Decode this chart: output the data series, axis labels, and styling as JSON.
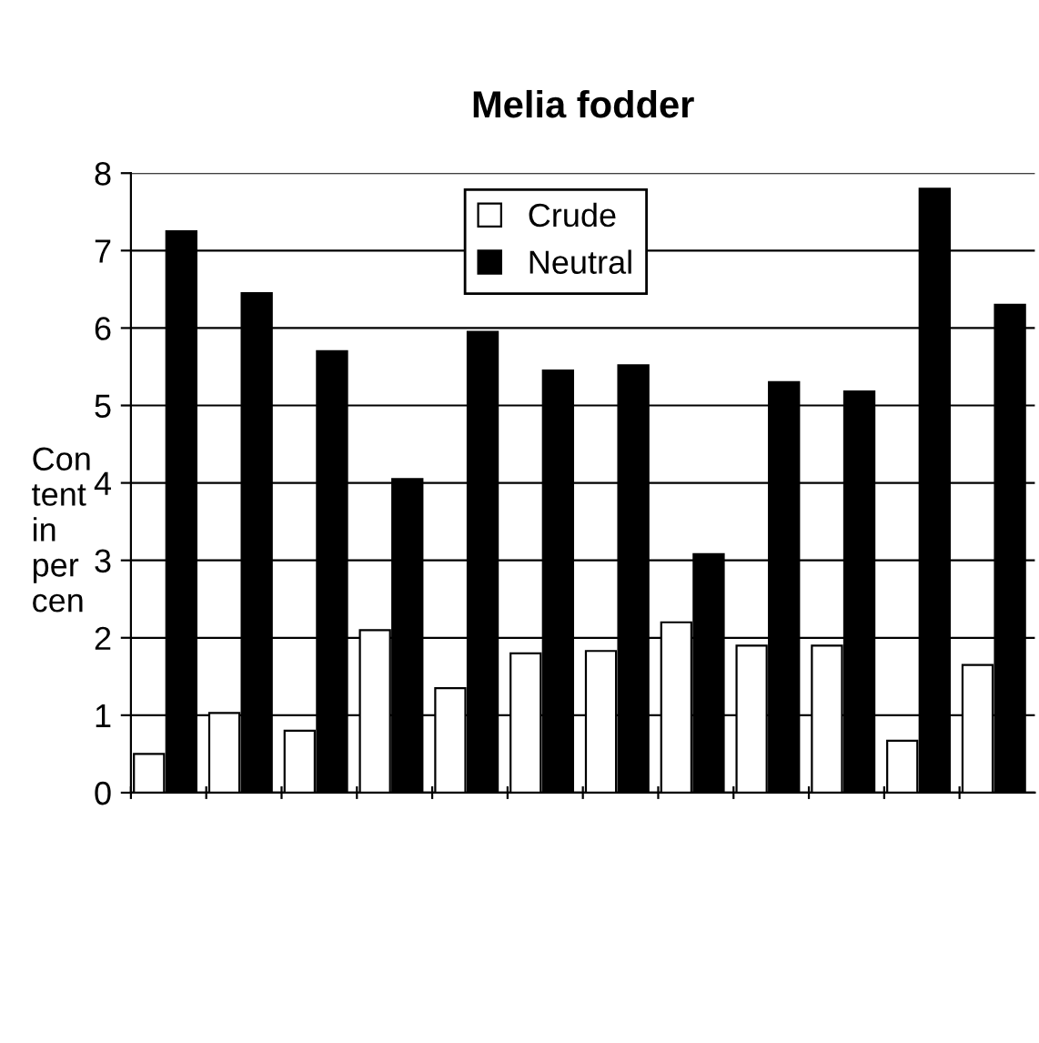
{
  "chart_data": {
    "type": "bar",
    "title": "Melia fodder",
    "ylabel": "Con\ntent\nin\nper\ncen",
    "categories": [
      null,
      null,
      null,
      null,
      null,
      null,
      null,
      null,
      null,
      null,
      null,
      null
    ],
    "series": [
      {
        "name": "Crude",
        "color": "#ffffff",
        "values": [
          0.5,
          1.03,
          0.8,
          2.1,
          1.35,
          1.8,
          1.83,
          2.2,
          1.9,
          1.9,
          0.67,
          1.65
        ]
      },
      {
        "name": "Neutral",
        "color": "#000000",
        "values": [
          7.25,
          6.45,
          5.7,
          4.05,
          5.95,
          5.45,
          5.52,
          3.08,
          5.3,
          5.18,
          7.8,
          6.3
        ]
      }
    ],
    "ylim": [
      0,
      8
    ],
    "yticks": [
      0,
      1,
      2,
      3,
      4,
      5,
      6,
      7,
      8
    ],
    "grid": "y",
    "legend": "top"
  }
}
